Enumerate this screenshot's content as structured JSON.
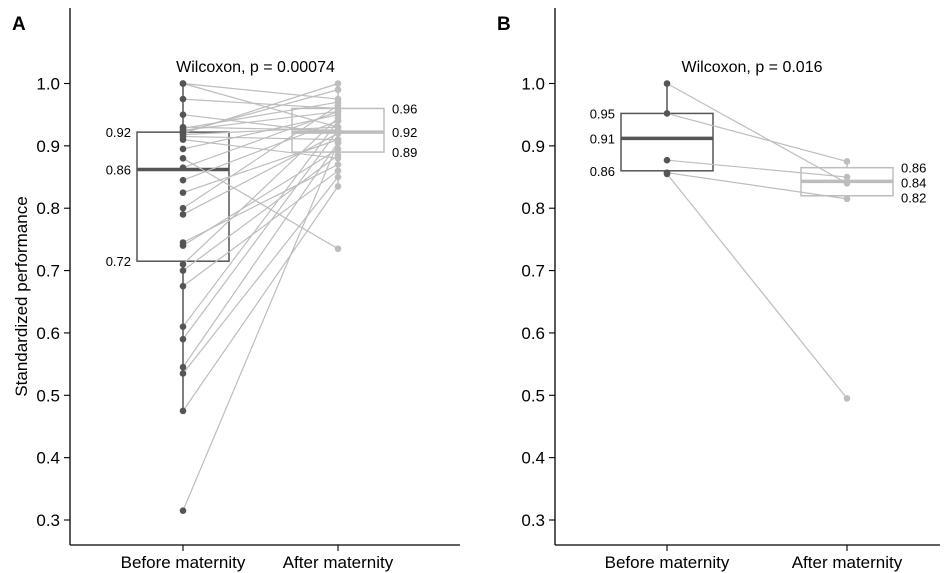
{
  "chart_data": [
    {
      "type": "box",
      "panel": "A",
      "ylabel": "Standardized performance",
      "categories": [
        "Before maternity",
        "After maternity"
      ],
      "yticks": [
        "0.3",
        "0.4",
        "0.5",
        "0.6",
        "0.7",
        "0.8",
        "0.9",
        "1.0"
      ],
      "ylim": [
        0.28,
        1.1
      ],
      "annotation": "Wilcoxon, p = 0.00074",
      "colors": {
        "before": "#555555",
        "after": "#bdbdbd",
        "line": "#bdbdbd"
      },
      "box_stats": [
        {
          "q1": 0.715,
          "median": 0.862,
          "q3": 0.922,
          "min": 0.47,
          "max": 1.0,
          "labels": {
            "q1": "0.72",
            "median": "0.86",
            "q3": "0.92"
          }
        },
        {
          "q1": 0.89,
          "median": 0.922,
          "q3": 0.96,
          "min": 0.835,
          "max": 1.0,
          "labels": {
            "q1": "0.89",
            "median": "0.92",
            "q3": "0.96"
          }
        }
      ],
      "pairs": [
        [
          1.0,
          0.975
        ],
        [
          1.0,
          0.93
        ],
        [
          0.975,
          0.96
        ],
        [
          0.95,
          0.92
        ],
        [
          0.93,
          0.925
        ],
        [
          0.928,
          0.97
        ],
        [
          0.925,
          0.955
        ],
        [
          0.922,
          0.99
        ],
        [
          0.92,
          1.0
        ],
        [
          0.918,
          0.93
        ],
        [
          0.915,
          0.91
        ],
        [
          0.91,
          0.88
        ],
        [
          0.895,
          0.95
        ],
        [
          0.88,
          0.735
        ],
        [
          0.865,
          0.955
        ],
        [
          0.845,
          0.94
        ],
        [
          0.825,
          0.91
        ],
        [
          0.8,
          0.965
        ],
        [
          0.79,
          0.92
        ],
        [
          0.745,
          0.87
        ],
        [
          0.74,
          0.895
        ],
        [
          0.71,
          0.945
        ],
        [
          0.7,
          0.885
        ],
        [
          0.675,
          0.86
        ],
        [
          0.61,
          0.94
        ],
        [
          0.59,
          0.925
        ],
        [
          0.545,
          0.905
        ],
        [
          0.535,
          0.85
        ],
        [
          0.475,
          0.835
        ],
        [
          0.315,
          0.905
        ]
      ]
    },
    {
      "type": "box",
      "panel": "B",
      "ylabel": "",
      "categories": [
        "Before maternity",
        "After maternity"
      ],
      "yticks": [
        "0.3",
        "0.4",
        "0.5",
        "0.6",
        "0.7",
        "0.8",
        "0.9",
        "1.0"
      ],
      "ylim": [
        0.28,
        1.1
      ],
      "annotation": "Wilcoxon, p = 0.016",
      "colors": {
        "before": "#555555",
        "after": "#bdbdbd",
        "line": "#bdbdbd"
      },
      "box_stats": [
        {
          "q1": 0.86,
          "median": 0.912,
          "q3": 0.952,
          "min": 0.855,
          "max": 1.0,
          "labels": {
            "q1": "0.86",
            "median": "0.91",
            "q3": "0.95"
          }
        },
        {
          "q1": 0.82,
          "median": 0.843,
          "q3": 0.865,
          "min": 0.815,
          "max": 0.875,
          "labels": {
            "q1": "0.82",
            "median": "0.84",
            "q3": "0.86"
          }
        }
      ],
      "pairs": [
        [
          1.0,
          0.84
        ],
        [
          0.952,
          0.875
        ],
        [
          0.877,
          0.85
        ],
        [
          0.857,
          0.815
        ],
        [
          0.855,
          0.495
        ]
      ]
    }
  ]
}
